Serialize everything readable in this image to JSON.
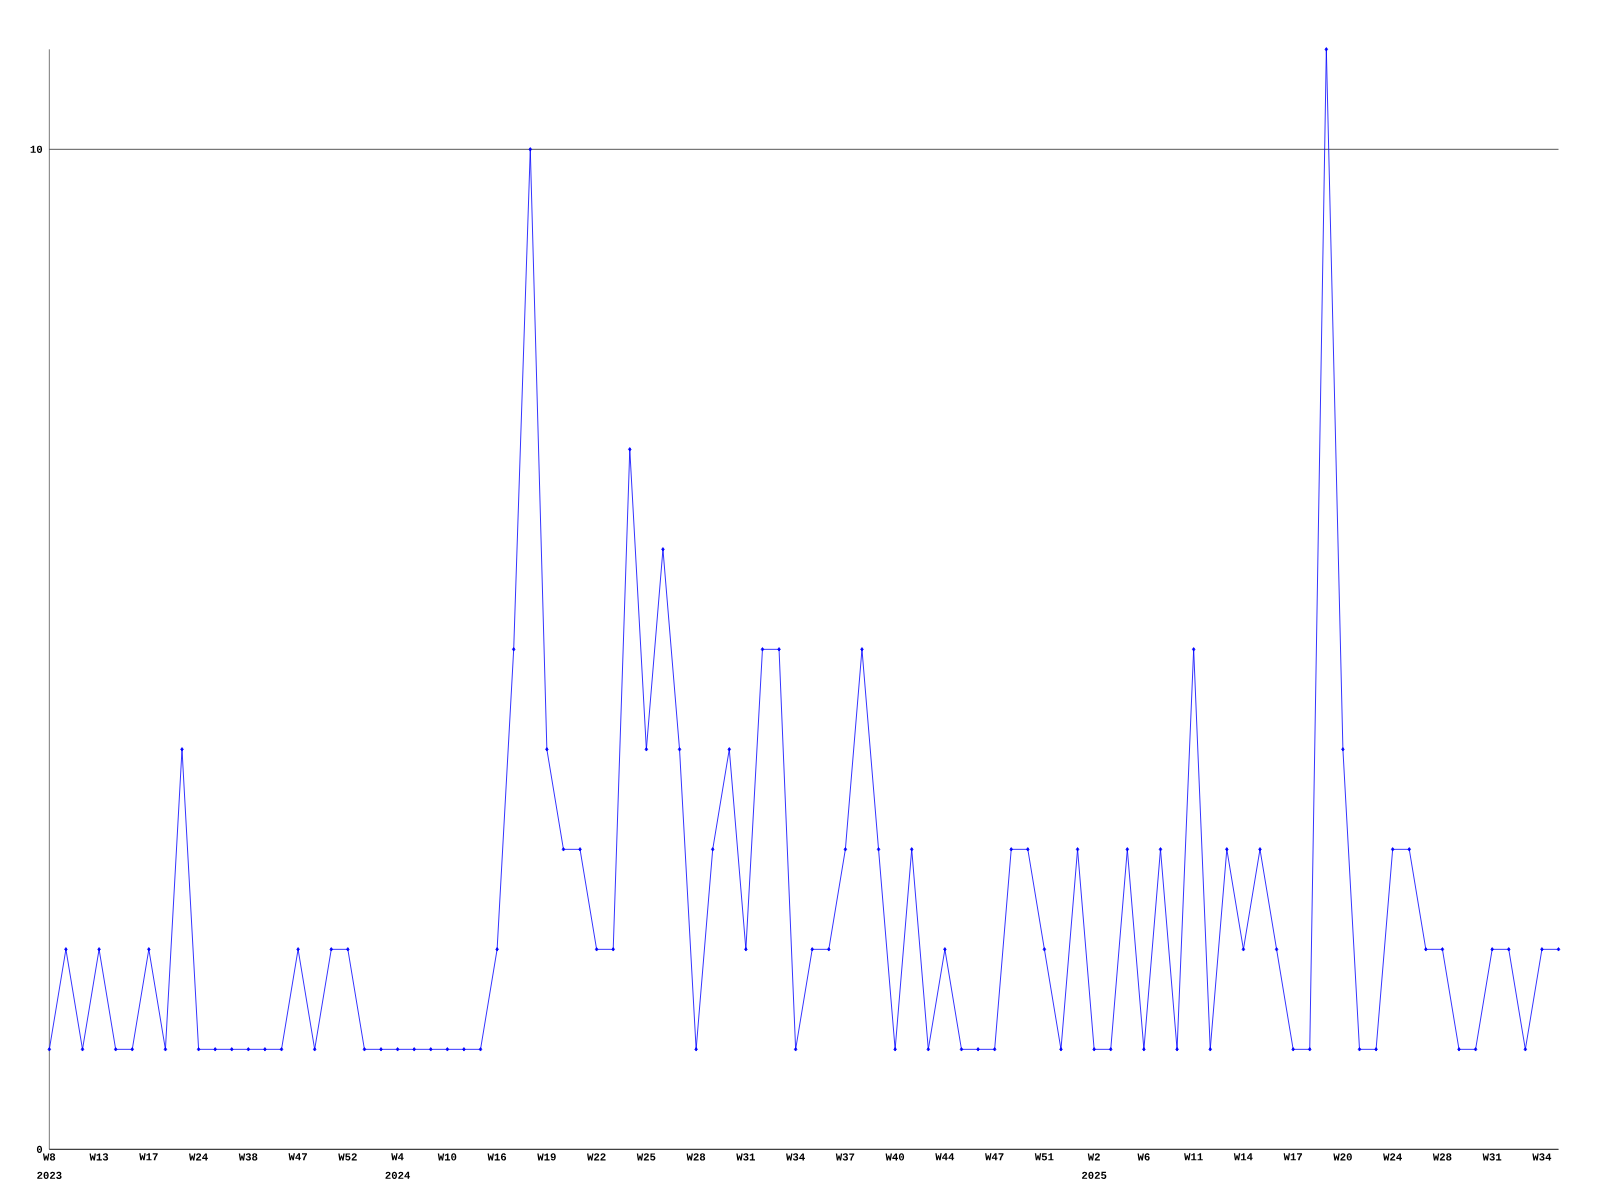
{
  "chart_data": {
    "type": "line",
    "categories": [
      "W8",
      null,
      null,
      "W13",
      null,
      null,
      "W17",
      null,
      null,
      "W24",
      null,
      null,
      "W38",
      null,
      null,
      "W47",
      null,
      null,
      "W52",
      null,
      null,
      "W4",
      null,
      null,
      "W10",
      null,
      null,
      "W16",
      null,
      null,
      "W19",
      null,
      null,
      "W22",
      null,
      null,
      "W25",
      null,
      null,
      "W28",
      null,
      null,
      "W31",
      null,
      null,
      "W34",
      null,
      null,
      "W37",
      null,
      null,
      "W40",
      null,
      null,
      "W44",
      null,
      null,
      "W47",
      null,
      null,
      "W51",
      null,
      null,
      "W2",
      null,
      null,
      "W6",
      null,
      null,
      "W11",
      null,
      null,
      "W14",
      null,
      null,
      "W17",
      null,
      null,
      "W20",
      null,
      null,
      "W24",
      null,
      null,
      "W28",
      null,
      null,
      "W31",
      null,
      null,
      "W34",
      null
    ],
    "series": [
      {
        "color": "#0000ff",
        "values": [
          1,
          2,
          1,
          2,
          1,
          1,
          2,
          1,
          4,
          1,
          1,
          1,
          1,
          1,
          1,
          2,
          1,
          2,
          2,
          1,
          1,
          1,
          1,
          1,
          1,
          1,
          1,
          2,
          5,
          10,
          4,
          3,
          3,
          2,
          2,
          7,
          4,
          6,
          4,
          1,
          3,
          4,
          2,
          5,
          5,
          1,
          2,
          2,
          3,
          5,
          3,
          1,
          3,
          1,
          2,
          1,
          1,
          1,
          3,
          3,
          2,
          1,
          3,
          1,
          1,
          3,
          1,
          3,
          1,
          5,
          1,
          3,
          2,
          3,
          2,
          1,
          1,
          11,
          4,
          1,
          1,
          3,
          3,
          2,
          2,
          1,
          1,
          2,
          2,
          1,
          2,
          2
        ]
      }
    ],
    "ylim": [
      0,
      11
    ],
    "yticks": [
      0,
      10
    ],
    "grid": "y",
    "marker": "diamond",
    "line_style": "solid",
    "annotations": [
      "2023",
      "2024",
      "2025"
    ]
  }
}
